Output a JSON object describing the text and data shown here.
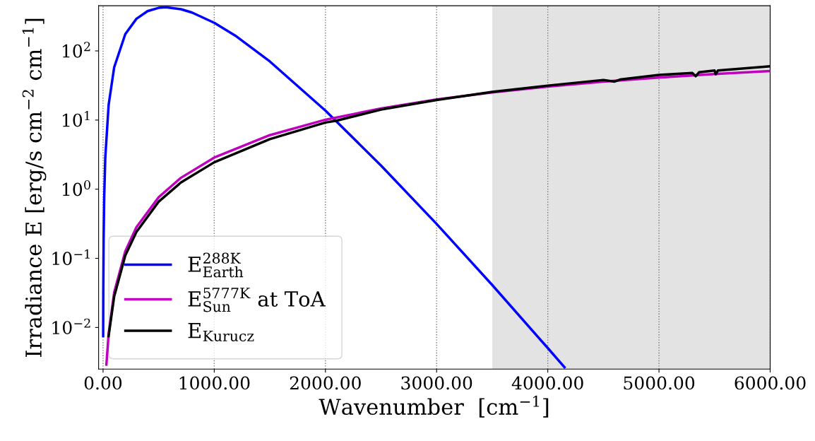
{
  "chart_data": {
    "type": "line",
    "xlabel": "Wavenumber  [cm$^{−1}$]",
    "ylabel": "Irradiance E [erg/s cm$^{−2}$ cm$^{−1}$]",
    "log": "y",
    "grid": "x",
    "legend": "bottom left",
    "line_style": "solid",
    "xlim": [
      -40,
      6000
    ],
    "ylim": [
      0.0025,
      450
    ],
    "xticks": [
      {
        "value": 0,
        "label": "0.00"
      },
      {
        "value": 1000,
        "label": "1000.00"
      },
      {
        "value": 2000,
        "label": "2000.00"
      },
      {
        "value": 3000,
        "label": "3000.00"
      },
      {
        "value": 4000,
        "label": "4000.00"
      },
      {
        "value": 5000,
        "label": "5000.00"
      },
      {
        "value": 6000,
        "label": "6000.00"
      }
    ],
    "yticks": [
      {
        "value": 0.01,
        "label": "10$^{−2}$"
      },
      {
        "value": 0.1,
        "label": "10$^{−1}$"
      },
      {
        "value": 1,
        "label": "10$^{0}$"
      },
      {
        "value": 10,
        "label": "10$^{1}$"
      },
      {
        "value": 100,
        "label": "10$^{2}$"
      }
    ],
    "bands": [
      {
        "axis": "x",
        "from": 3500,
        "to": 6000,
        "color": "#e3e3e3"
      }
    ],
    "series": [
      {
        "name": "E$^{288K}$$_{Earth}$",
        "color": "#0000ff",
        "x": [
          1,
          2,
          5,
          10,
          20,
          50,
          100,
          200,
          300,
          400,
          500,
          565,
          700,
          800,
          1000,
          1200,
          1500,
          2000,
          2500,
          3000,
          3500,
          4000,
          4150
        ],
        "values": [
          0.0075,
          0.03,
          0.185,
          0.73,
          2.85,
          16.5,
          57.8,
          175,
          291,
          376,
          420,
          427,
          401,
          359,
          255,
          162,
          70.4,
          13.7,
          2.2,
          0.314,
          0.0412,
          0.00504,
          0.00266
        ]
      },
      {
        "name": "E$^{5777K}$$_{Sun}$ at ToA",
        "color": "#bf00bf",
        "x": [
          30,
          50,
          100,
          200,
          300,
          500,
          700,
          1000,
          1500,
          2000,
          2500,
          3000,
          3500,
          4000,
          4500,
          5000,
          5500,
          6000
        ],
        "values": [
          0.0029,
          0.0081,
          0.0322,
          0.127,
          0.282,
          0.764,
          1.46,
          2.87,
          6.05,
          10.1,
          14.7,
          19.8,
          25.1,
          30.5,
          35.9,
          41.2,
          46.3,
          51.1
        ]
      },
      {
        "name": "E$_{Kurucz}$",
        "color": "#000000",
        "x": [
          50,
          100,
          200,
          300,
          500,
          700,
          1000,
          1500,
          2000,
          2100,
          2500,
          3000,
          3500,
          4000,
          4500,
          4600,
          4650,
          5000,
          5300,
          5330,
          5360,
          5500,
          5510,
          5530,
          6000
        ],
        "values": [
          0.0075,
          0.028,
          0.11,
          0.24,
          0.66,
          1.25,
          2.45,
          5.3,
          9.2,
          9.8,
          14.2,
          19.5,
          25.5,
          31.5,
          38,
          36,
          38.5,
          45,
          48,
          43,
          49,
          52,
          46,
          52,
          60
        ]
      }
    ]
  }
}
